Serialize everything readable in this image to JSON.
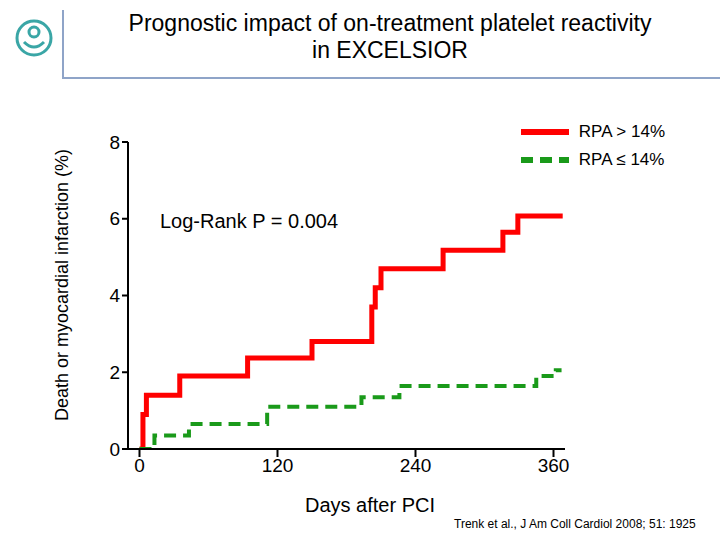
{
  "chart_data": {
    "type": "line",
    "title": "Prognostic impact of on-treatment platelet reactivity in EXCELSIOR",
    "x_label": "Days after PCI",
    "y_label": "Death or myocardial infarction (%)",
    "annotations": [
      "Log-Rank P = 0.004",
      "Trenk et al., J Am Coll Cardiol 2008; 51: 1925"
    ],
    "xlim": [
      -10,
      370
    ],
    "xticks": [
      0,
      120,
      240,
      360
    ],
    "ylim": [
      0,
      8
    ],
    "yticks": [
      0,
      2,
      4,
      6,
      8
    ],
    "grid": false,
    "legend": "upper right",
    "series": [
      {
        "name": "RPA > 14%",
        "color": "#ff0000",
        "line_style": "solid",
        "x": [
          0,
          3,
          6,
          35,
          94,
          150,
          202,
          205,
          210,
          264,
          316,
          329,
          368
        ],
        "values": [
          0,
          0.9,
          1.4,
          1.9,
          2.37,
          2.8,
          3.7,
          4.2,
          4.7,
          5.18,
          5.65,
          6.07,
          6.07
        ]
      },
      {
        "name": "RPA ≤ 14%",
        "color": "#1a9a1a",
        "line_style": "dashed",
        "x": [
          0,
          13,
          43,
          111,
          193,
          226,
          345,
          362,
          367
        ],
        "values": [
          0,
          0.35,
          0.65,
          1.1,
          1.35,
          1.64,
          1.9,
          2.05,
          2.05
        ]
      }
    ]
  }
}
